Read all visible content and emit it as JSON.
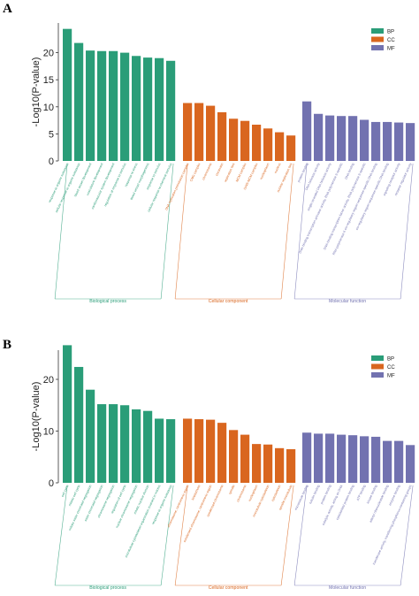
{
  "colors": {
    "BP": "#2a9d78",
    "CC": "#d9661f",
    "MF": "#7272b0"
  },
  "chart_data": [
    {
      "panel": "A",
      "type": "bar",
      "ylabel": "-Log10(P-value)",
      "ylim": [
        0,
        25
      ],
      "yticks": [
        0,
        5,
        10,
        15,
        20
      ],
      "legend": [
        "BP",
        "CC",
        "MF"
      ],
      "legend_position": "top-right",
      "groups": [
        {
          "key": "BP",
          "label": "Biological process",
          "categories": [
            "response to organic substance",
            "cellular response to organic substance",
            "blood vessel development",
            "vasculature development",
            "cardiovascular system development",
            "regulation of response to stimulus",
            "response to stress",
            "blood vessel morphogenesis",
            "response to stimulus",
            "cellular response to chemical stimulus"
          ],
          "values": [
            24.4,
            21.8,
            20.4,
            20.3,
            20.3,
            20.0,
            19.4,
            19.1,
            19.0,
            18.5
          ]
        },
        {
          "key": "CC",
          "label": "Cellular component",
          "categories": [
            "DNA replication preinitiation complex",
            "CMG complex",
            "chromosome",
            "chromatin",
            "replication fork",
            "MCM complex",
            "GINS-MCM complex",
            "nucleoplasm",
            "nucleus",
            "nuclear replication fork"
          ],
          "values": [
            10.7,
            10.7,
            10.2,
            9.0,
            7.8,
            7.4,
            6.7,
            6.0,
            5.3,
            4.7
          ]
        },
        {
          "key": "MF",
          "label": "Molecular function",
          "categories": [
            "protein binding",
            "DNA helicase activity",
            "single-stranded DNA helicase activity",
            "DNA-binding transcription activator activity, RNA polymerase II-specific",
            "DNA binding",
            "DNA-binding transcription factor activity, RNA polymerase II-specific",
            "RNA polymerase II cis-regulatory region sequence-specific DNA binding",
            "cis-regulatory region sequence-specific DNA binding",
            "signaling receptor activity",
            "receptor regulator activity"
          ],
          "values": [
            11.0,
            8.7,
            8.4,
            8.3,
            8.3,
            7.6,
            7.2,
            7.2,
            7.1,
            7.0
          ]
        }
      ]
    },
    {
      "panel": "B",
      "type": "bar",
      "ylabel": "-Log10(P-value)",
      "ylim": [
        0,
        27
      ],
      "yticks": [
        0,
        10,
        20
      ],
      "legend": [
        "BP",
        "CC",
        "MF"
      ],
      "legend_position": "top-right",
      "groups": [
        {
          "key": "BP",
          "label": "Biological process",
          "categories": [
            "cell cycle",
            "mitotic cell cycle",
            "mitotic sister chromatid segregation",
            "sister chromatid segregation",
            "chromosome segregation",
            "regulation of cell cycle",
            "nuclear chromosome segregation",
            "mitotic nuclear division",
            "microtubule cytoskeleton organization involved in mitosis",
            "response to organic substance"
          ],
          "values": [
            26.6,
            22.4,
            18.0,
            15.2,
            15.2,
            15.0,
            14.2,
            13.9,
            12.4,
            12.3
          ]
        },
        {
          "key": "CC",
          "label": "Cellular component",
          "categories": [
            "chromosome, centromeric region",
            "kinetochore",
            "condensed chromosome, centromeric region",
            "condensed chromosome",
            "spindle",
            "chromosome",
            "nucleoplasm",
            "microtubule cytoskeleton",
            "cytoskeleton",
            "spindle microtubule"
          ],
          "values": [
            12.4,
            12.3,
            12.2,
            11.6,
            10.2,
            9.3,
            7.5,
            7.4,
            6.7,
            6.5
          ]
        },
        {
          "key": "MF",
          "label": "Molecular function",
          "categories": [
            "microtubule binding",
            "tubulin binding",
            "protein binding",
            "catalytic activity, acting on DNA",
            "cytoskeletal protein binding",
            "ATP binding",
            "kinase binding",
            "adenyl ribonucleotide binding",
            "enzyme binding",
            "transferase activity, transferring phosphorus-containing groups"
          ],
          "values": [
            9.7,
            9.5,
            9.5,
            9.3,
            9.2,
            9.0,
            8.9,
            8.1,
            8.1,
            7.3
          ]
        }
      ]
    }
  ]
}
